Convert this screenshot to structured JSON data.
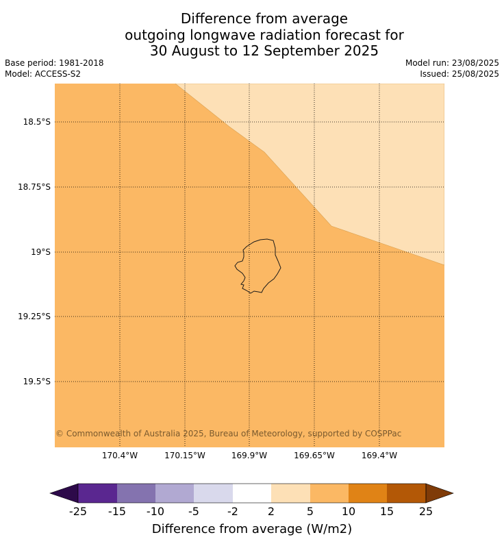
{
  "title": {
    "line1": "Difference from average",
    "line2": "outgoing longwave radiation forecast for",
    "line3": "30 August to 12 September 2025"
  },
  "meta": {
    "base_period": "Base period: 1981-2018",
    "model": "Model: ACCESS-S2",
    "model_run": "Model run: 23/08/2025",
    "issued": "Issued: 25/08/2025"
  },
  "map": {
    "longitude_labels": [
      "170.4°W",
      "170.15°W",
      "169.9°W",
      "169.65°W",
      "169.4°W"
    ],
    "latitude_labels": [
      "18.5°S",
      "18.75°S",
      "19°S",
      "19.25°S",
      "19.5°S"
    ],
    "fill_main": "#fbb864",
    "fill_light": "#fde0b6",
    "copyright": "© Commonwealth of Australia 2025, Bureau of Meteorology, supported by COSPPac"
  },
  "colorbar": {
    "title": "Difference from average (W/m2)",
    "tick_labels": [
      "-25",
      "-15",
      "-10",
      "-5",
      "-2",
      "2",
      "5",
      "10",
      "15",
      "25"
    ],
    "colors": [
      "#5a2790",
      "#8473af",
      "#b1a9d2",
      "#d9d9ec",
      "#ffffff",
      "#fde0b6",
      "#fbb864",
      "#e08316",
      "#b35806"
    ],
    "low_extend_color": "#2d0a4a",
    "high_extend_color": "#7f3b08"
  }
}
